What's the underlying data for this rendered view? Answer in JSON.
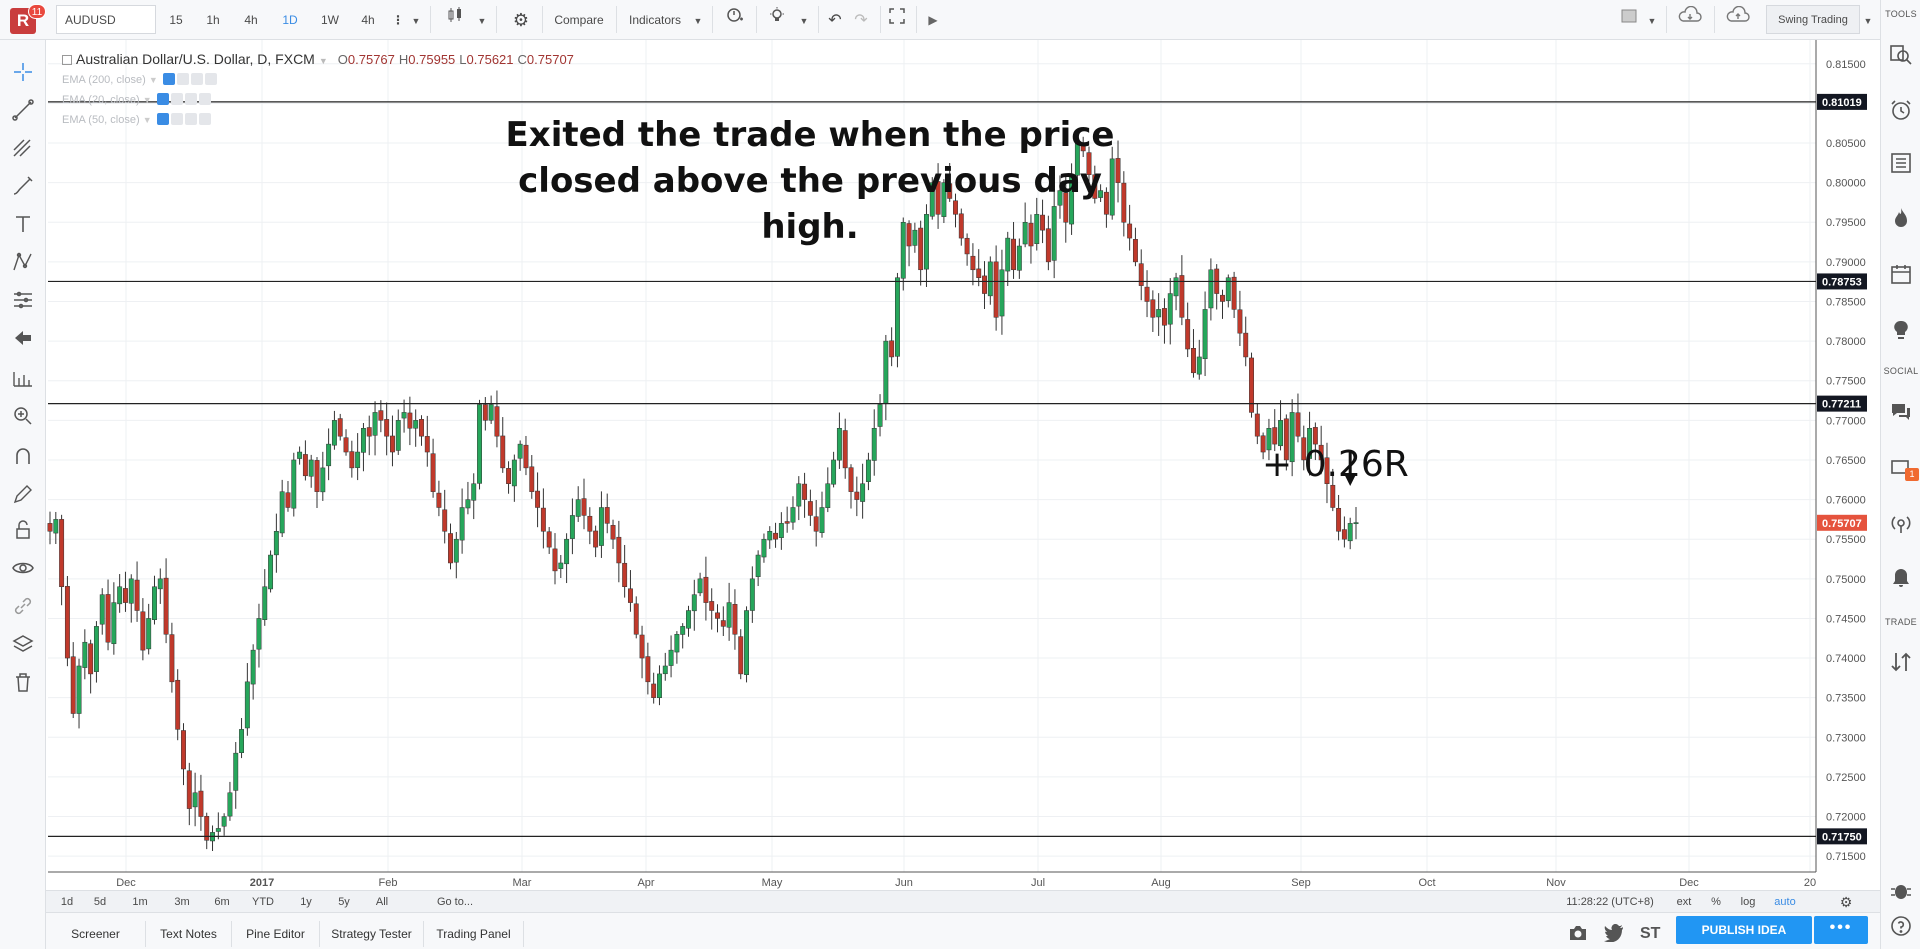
{
  "header": {
    "notifications": "11",
    "logo": "R",
    "symbol": "AUDUSD",
    "intervals": [
      "15",
      "1h",
      "4h",
      "1D",
      "1W",
      "4h"
    ],
    "active_interval": "1D",
    "compare_label": "Compare",
    "indicators_label": "Indicators",
    "layout_name": "Swing Trading"
  },
  "legend": {
    "title": "Australian Dollar/U.S. Dollar, D, FXCM",
    "open_k": "O",
    "open": "0.75767",
    "high_k": "H",
    "high": "0.75955",
    "low_k": "L",
    "low": "0.75621",
    "close_k": "C",
    "close": "0.75707",
    "emas": [
      "EMA (200, close)",
      "EMA (20, close)",
      "EMA (50, close)"
    ]
  },
  "annotations": {
    "main": "Exited the trade when the price closed above the previous day high.",
    "r_multiple": "+ 0.26R"
  },
  "right_panel": {
    "tools_label": "TOOLS",
    "social_label": "SOCIAL",
    "trade_label": "TRADE",
    "social_badge": "1"
  },
  "range_bar": {
    "ranges": [
      "1d",
      "5d",
      "1m",
      "3m",
      "6m",
      "YTD",
      "1y",
      "5y",
      "All"
    ],
    "goto": "Go to...",
    "time": "11:28:22 (UTC+8)",
    "ext": "ext",
    "pct": "%",
    "log": "log",
    "auto": "auto"
  },
  "bottom": {
    "tabs": [
      "Screener",
      "Text Notes",
      "Pine Editor",
      "Strategy Tester",
      "Trading Panel"
    ],
    "publish_label": "PUBLISH IDEA",
    "more_label": "•••",
    "share_st": "ST"
  },
  "colors": {
    "up": "#26a65b",
    "down": "#c0392b",
    "last_price_badge": "#e5533d",
    "level_badge": "#131722",
    "accent": "#3a8ce4"
  },
  "chart_data": {
    "type": "candlestick",
    "symbol": "AUDUSD",
    "x_ticks": [
      "Dec",
      "2017",
      "Feb",
      "Mar",
      "Apr",
      "May",
      "Jun",
      "Jul",
      "Aug",
      "Sep",
      "Oct",
      "Nov",
      "Dec",
      "20"
    ],
    "y_ticks": [
      "0.81500",
      "0.81000",
      "0.80500",
      "0.80000",
      "0.79500",
      "0.79000",
      "0.78500",
      "0.78000",
      "0.77500",
      "0.77000",
      "0.76500",
      "0.76000",
      "0.75500",
      "0.75000",
      "0.74500",
      "0.74000",
      "0.73500",
      "0.73000",
      "0.72500",
      "0.72000",
      "0.71500"
    ],
    "ylim": [
      0.713,
      0.818
    ],
    "horizontal_levels": [
      "0.81019",
      "0.78753",
      "0.77211",
      "0.71750"
    ],
    "last_price": "0.75707",
    "grid": true,
    "closes": [
      0.756,
      0.7575,
      0.749,
      0.74,
      0.733,
      0.739,
      0.742,
      0.738,
      0.744,
      0.748,
      0.742,
      0.747,
      0.749,
      0.747,
      0.75,
      0.746,
      0.741,
      0.745,
      0.749,
      0.75,
      0.743,
      0.737,
      0.731,
      0.726,
      0.721,
      0.723,
      0.72,
      0.717,
      0.718,
      0.7185,
      0.72,
      0.723,
      0.728,
      0.731,
      0.737,
      0.741,
      0.745,
      0.749,
      0.753,
      0.756,
      0.761,
      0.759,
      0.765,
      0.766,
      0.763,
      0.765,
      0.761,
      0.764,
      0.767,
      0.77,
      0.768,
      0.766,
      0.764,
      0.766,
      0.769,
      0.768,
      0.771,
      0.77,
      0.768,
      0.766,
      0.77,
      0.771,
      0.769,
      0.77,
      0.768,
      0.766,
      0.761,
      0.759,
      0.756,
      0.752,
      0.755,
      0.759,
      0.76,
      0.762,
      0.772,
      0.77,
      0.772,
      0.768,
      0.764,
      0.762,
      0.765,
      0.767,
      0.764,
      0.761,
      0.759,
      0.756,
      0.754,
      0.751,
      0.752,
      0.755,
      0.758,
      0.76,
      0.758,
      0.756,
      0.754,
      0.759,
      0.757,
      0.755,
      0.752,
      0.749,
      0.747,
      0.743,
      0.74,
      0.737,
      0.735,
      0.738,
      0.739,
      0.741,
      0.743,
      0.744,
      0.746,
      0.748,
      0.75,
      0.747,
      0.746,
      0.745,
      0.744,
      0.747,
      0.743,
      0.738,
      0.746,
      0.75,
      0.753,
      0.755,
      0.756,
      0.755,
      0.757,
      0.757,
      0.759,
      0.762,
      0.76,
      0.758,
      0.756,
      0.759,
      0.762,
      0.765,
      0.769,
      0.764,
      0.761,
      0.76,
      0.762,
      0.765,
      0.769,
      0.772,
      0.78,
      0.778,
      0.788,
      0.795,
      0.792,
      0.794,
      0.789,
      0.796,
      0.8,
      0.796,
      0.8,
      0.798,
      0.796,
      0.793,
      0.791,
      0.789,
      0.788,
      0.786,
      0.79,
      0.783,
      0.789,
      0.793,
      0.789,
      0.792,
      0.795,
      0.792,
      0.796,
      0.794,
      0.79,
      0.797,
      0.799,
      0.795,
      0.801,
      0.805,
      0.804,
      0.801,
      0.798,
      0.799,
      0.796,
      0.803,
      0.8,
      0.795,
      0.793,
      0.79,
      0.787,
      0.785,
      0.783,
      0.784,
      0.782,
      0.786,
      0.788,
      0.783,
      0.779,
      0.776,
      0.778,
      0.784,
      0.789,
      0.786,
      0.785,
      0.788,
      0.784,
      0.781,
      0.778,
      0.771,
      0.768,
      0.766,
      0.769,
      0.767,
      0.77,
      0.765,
      0.771,
      0.768,
      0.765,
      0.769,
      0.767,
      0.765,
      0.762,
      0.759,
      0.756,
      0.755,
      0.757,
      0.7571
    ]
  }
}
